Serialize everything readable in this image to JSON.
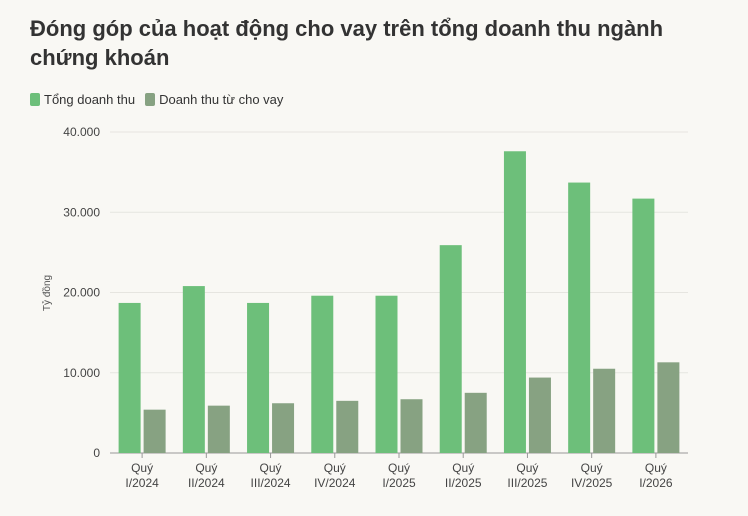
{
  "title": "Đóng góp của hoạt động cho vay trên tổng doanh thu ngành chứng khoán",
  "legend": {
    "items": [
      {
        "label": "Tổng doanh thu",
        "color": "#6dbf7a"
      },
      {
        "label": "Doanh thu từ cho vay",
        "color": "#87a282"
      }
    ]
  },
  "chart_data": {
    "type": "bar",
    "categories": [
      [
        "Quý",
        "I/2024"
      ],
      [
        "Quý",
        "II/2024"
      ],
      [
        "Quý",
        "III/2024"
      ],
      [
        "Quý",
        "IV/2024"
      ],
      [
        "Quý",
        "I/2025"
      ],
      [
        "Quý",
        "II/2025"
      ],
      [
        "Quý",
        "III/2025"
      ],
      [
        "Quý",
        "IV/2025"
      ],
      [
        "Quý",
        "I/2026"
      ]
    ],
    "series": [
      {
        "name": "Tổng doanh thu",
        "color": "#6dbf7a",
        "values": [
          18700,
          20800,
          18700,
          19600,
          19600,
          25900,
          37600,
          33700,
          31700
        ]
      },
      {
        "name": "Doanh thu từ cho vay",
        "color": "#87a282",
        "values": [
          5400,
          5900,
          6200,
          6500,
          6700,
          7500,
          9400,
          10500,
          11300
        ]
      }
    ],
    "ylabel": "Tỷ đồng",
    "ylim": [
      0,
      40000
    ],
    "yticks": [
      0,
      10000,
      20000,
      30000,
      40000
    ],
    "ytick_labels": [
      "0",
      "10.000",
      "20.000",
      "30.000",
      "40.000"
    ],
    "grid": true,
    "legend_position": "top-left"
  }
}
